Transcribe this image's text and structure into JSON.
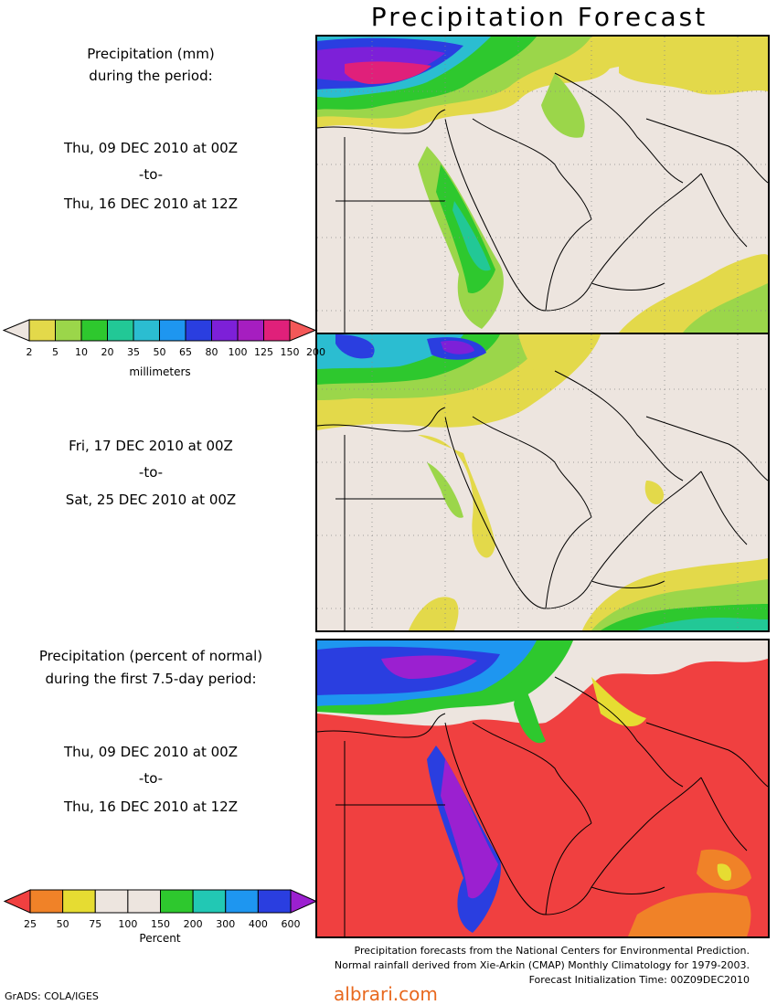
{
  "title": "Precipitation Forecast",
  "panel1": {
    "header_line1": "Precipitation (mm)",
    "header_line2": "during the period:",
    "start": "Thu, 09 DEC 2010 at 00Z",
    "to": "-to-",
    "end": "Thu, 16 DEC 2010 at 12Z"
  },
  "panel2": {
    "start": "Fri, 17 DEC 2010 at 00Z",
    "to": "-to-",
    "end": "Sat, 25 DEC 2010 at 00Z"
  },
  "panel3": {
    "header_line1": "Precipitation (percent of normal)",
    "header_line2": "during the first 7.5-day period:",
    "start": "Thu, 09 DEC 2010 at 00Z",
    "to": "-to-",
    "end": "Thu, 16 DEC 2010 at 12Z"
  },
  "colorbar_mm": {
    "unit": "millimeters",
    "ticks": [
      "2",
      "5",
      "10",
      "20",
      "35",
      "50",
      "65",
      "80",
      "100",
      "125",
      "150",
      "200"
    ],
    "colors": [
      "#ede5df",
      "#e3d94a",
      "#9bd64a",
      "#2ec82e",
      "#22c896",
      "#2bbdd1",
      "#1e96f0",
      "#2a3ee0",
      "#7d20d8",
      "#a61ec0",
      "#e0207a",
      "#f45858"
    ]
  },
  "colorbar_pct": {
    "unit": "Percent",
    "ticks": [
      "25",
      "50",
      "75",
      "100",
      "150",
      "200",
      "300",
      "400",
      "600"
    ],
    "colors": [
      "#f04040",
      "#f08228",
      "#e6dc32",
      "#ede5df",
      "#ede5df",
      "#2ec82e",
      "#22c8b4",
      "#1e96f0",
      "#2a3ee0",
      "#9b20d0"
    ]
  },
  "credits": {
    "line1": "Precipitation forecasts from the National Centers for Environmental Prediction.",
    "line2": "Normal rainfall derived from Xie-Arkin (CMAP) Monthly Climatology for 1979-2003.",
    "line3": "Forecast Initialization Time: 00Z09DEC2010"
  },
  "software": "GrADS: COLA/IGES",
  "watermark": "albrari.com"
}
